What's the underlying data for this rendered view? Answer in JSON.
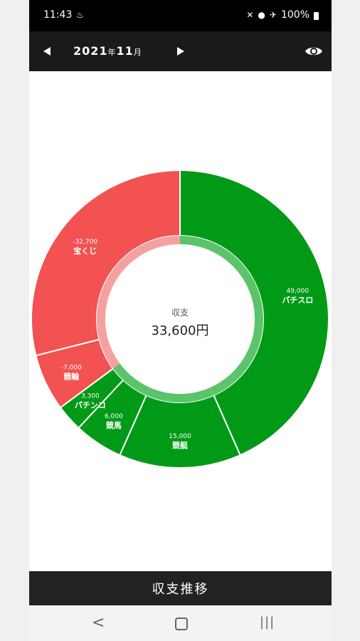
{
  "status_bar": {
    "time": "11:43",
    "battery": "100%",
    "icons": [
      "notification-icon",
      "mute-icon",
      "location-icon",
      "airplane-icon",
      "battery-icon"
    ]
  },
  "header": {
    "year_label": "2021",
    "year_unit": "年",
    "month_label": "11",
    "month_unit": "月"
  },
  "center": {
    "label": "収支",
    "value": "33,600円"
  },
  "colors": {
    "income": "#009A17",
    "expense": "#F25252",
    "inner_income": "#5BC46A",
    "inner_expense": "#F5A1A1",
    "header_bg": "#1a1a1a"
  },
  "chart_data": {
    "type": "pie",
    "donut": true,
    "slices": [
      {
        "name": "パチスロ",
        "value": 49000,
        "display": "49,000",
        "kind": "income"
      },
      {
        "name": "競艇",
        "value": 15000,
        "display": "15,000",
        "kind": "income"
      },
      {
        "name": "競馬",
        "value": 6000,
        "display": "6,000",
        "kind": "income"
      },
      {
        "name": "パチンコ",
        "value": 3300,
        "display": "3,300",
        "kind": "income"
      },
      {
        "name": "競輪",
        "value": -7000,
        "display": "-7,000",
        "kind": "expense"
      },
      {
        "name": "宝くじ",
        "value": -32700,
        "display": "-32,700",
        "kind": "expense"
      }
    ],
    "total_label": "収支",
    "total": 33600
  },
  "bottom_button": {
    "label": "収支推移"
  },
  "nav": {
    "back": "<",
    "recent": "|||"
  }
}
